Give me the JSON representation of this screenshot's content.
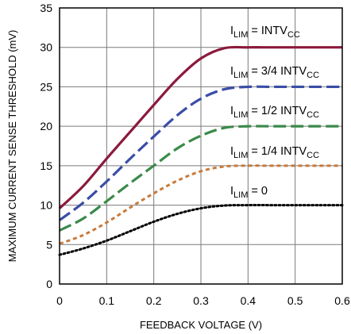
{
  "chart_data": {
    "type": "line",
    "xlabel": "FEEDBACK VOLTAGE (V)",
    "ylabel": "MAXIMUM CURRENT SENSE THRESHOLD (mV)",
    "xlim": [
      0,
      0.6
    ],
    "ylim": [
      0,
      35
    ],
    "x_ticks": [
      "0",
      "0.1",
      "0.2",
      "0.3",
      "0.4",
      "0.5",
      "0.6"
    ],
    "y_ticks": [
      "0",
      "5",
      "10",
      "15",
      "20",
      "25",
      "30",
      "35"
    ],
    "grid": true,
    "legend": "inline labels above curves",
    "series": [
      {
        "name": "ILIM = INTVCC",
        "label_parts": [
          "I",
          "LIM",
          " = INTV",
          "CC"
        ],
        "color": "#8b1a3c",
        "style": "solid",
        "x": [
          0,
          0.05,
          0.1,
          0.15,
          0.2,
          0.25,
          0.3,
          0.35,
          0.4,
          0.45,
          0.5,
          0.55,
          0.6
        ],
        "y": [
          9.6,
          12.4,
          15.9,
          19.3,
          22.7,
          26.0,
          28.6,
          29.9,
          30.0,
          30.0,
          30.0,
          30.0,
          30.0
        ]
      },
      {
        "name": "ILIM = 3/4 INTVCC",
        "label_parts": [
          "I",
          "LIM",
          " = 3/4 INTV",
          "CC"
        ],
        "color": "#3a4ea6",
        "style": "dashed",
        "x": [
          0,
          0.05,
          0.1,
          0.15,
          0.2,
          0.25,
          0.3,
          0.35,
          0.4,
          0.45,
          0.5,
          0.55,
          0.6
        ],
        "y": [
          8.1,
          10.3,
          13.0,
          15.9,
          18.7,
          21.4,
          23.5,
          24.7,
          25.0,
          25.0,
          25.0,
          25.0,
          25.0
        ]
      },
      {
        "name": "ILIM = 1/2 INTVCC",
        "label_parts": [
          "I",
          "LIM",
          " = 1/2 INTV",
          "CC"
        ],
        "color": "#3a8a4a",
        "style": "dashed",
        "x": [
          0,
          0.05,
          0.1,
          0.15,
          0.2,
          0.25,
          0.3,
          0.35,
          0.4,
          0.45,
          0.5,
          0.55,
          0.6
        ],
        "y": [
          6.8,
          8.3,
          10.5,
          12.8,
          15.0,
          17.2,
          18.8,
          19.8,
          20.0,
          20.0,
          20.0,
          20.0,
          20.0
        ]
      },
      {
        "name": "ILIM = 1/4 INTVCC",
        "label_parts": [
          "I",
          "LIM",
          " = 1/4 INTV",
          "CC"
        ],
        "color": "#c87a3a",
        "style": "dotted-dash",
        "x": [
          0,
          0.05,
          0.1,
          0.15,
          0.2,
          0.25,
          0.3,
          0.35,
          0.4,
          0.45,
          0.5,
          0.55,
          0.6
        ],
        "y": [
          5.1,
          6.2,
          7.8,
          9.7,
          11.5,
          13.1,
          14.3,
          14.9,
          15.0,
          15.0,
          15.0,
          15.0,
          15.0
        ]
      },
      {
        "name": "ILIM = 0",
        "label_parts": [
          "I",
          "LIM",
          " = 0",
          ""
        ],
        "color": "#000000",
        "style": "dotted",
        "x": [
          0,
          0.05,
          0.1,
          0.15,
          0.2,
          0.25,
          0.3,
          0.35,
          0.4,
          0.45,
          0.5,
          0.55,
          0.6
        ],
        "y": [
          3.7,
          4.5,
          5.5,
          6.7,
          7.9,
          8.9,
          9.6,
          9.95,
          10.0,
          10.0,
          10.0,
          10.0,
          10.0
        ]
      }
    ]
  }
}
